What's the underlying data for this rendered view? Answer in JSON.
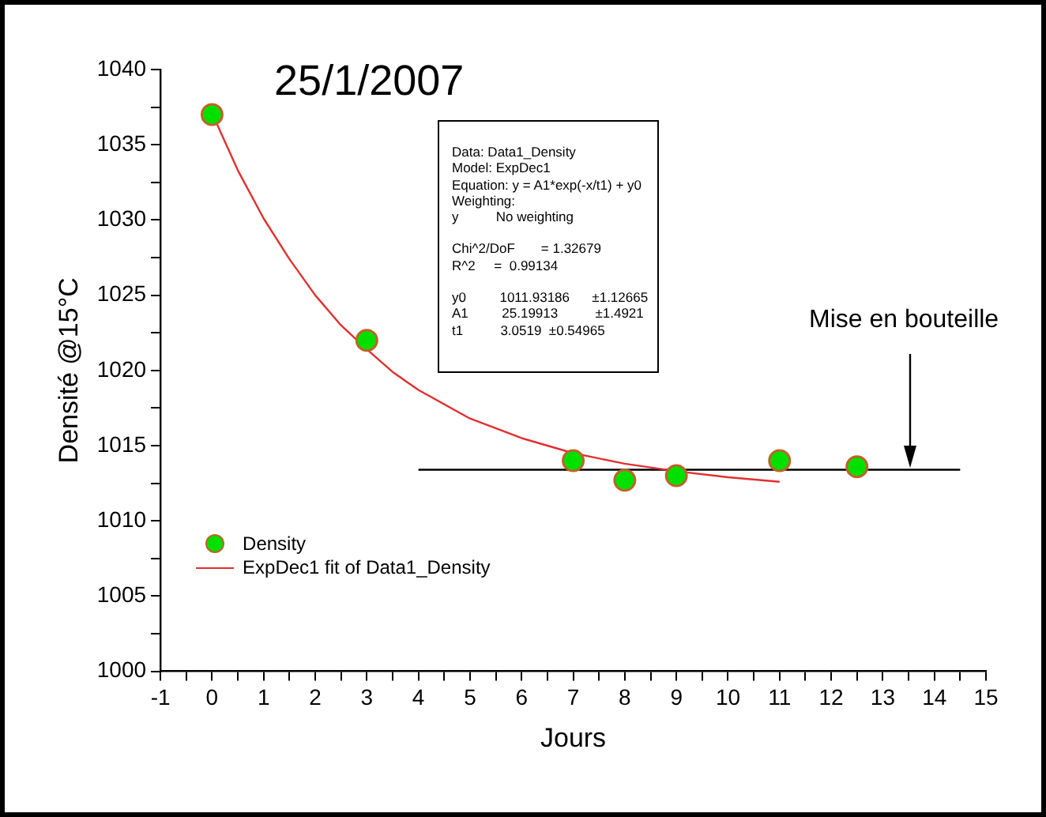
{
  "chart_data": {
    "type": "scatter",
    "title": "25/1/2007",
    "xlabel": "Jours",
    "ylabel": "Densité @15°C",
    "xlim": [
      -1,
      15
    ],
    "xticks": [
      -1,
      {
        "value": -0.5,
        "label": null
      },
      0,
      {
        "value": 0.5,
        "label": null
      },
      1,
      {
        "value": 1.5,
        "label": null
      },
      2,
      {
        "value": 2.5,
        "label": null
      },
      3,
      {
        "value": 3.5,
        "label": null
      },
      4,
      {
        "value": 4.5,
        "label": null
      },
      5,
      {
        "value": 5.5,
        "label": null
      },
      6,
      {
        "value": 6.5,
        "label": null
      },
      7,
      {
        "value": 7.5,
        "label": null
      },
      8,
      {
        "value": 8.5,
        "label": null
      },
      9,
      {
        "value": 9.5,
        "label": null
      },
      10,
      {
        "value": 10.5,
        "label": null
      },
      11,
      {
        "value": 11.5,
        "label": null
      },
      12,
      {
        "value": 12.5,
        "label": null
      },
      13,
      {
        "value": 13.5,
        "label": null
      },
      14,
      {
        "value": 14.5,
        "label": null
      },
      15
    ],
    "ylim": [
      1000,
      1040
    ],
    "yticks": [
      1000,
      {
        "value": 1002.5,
        "label": null
      },
      1005,
      {
        "value": 1007.5,
        "label": null
      },
      1010,
      {
        "value": 1012.5,
        "label": null
      },
      1015,
      {
        "value": 1017.5,
        "label": null
      },
      1020,
      {
        "value": 1022.5,
        "label": null
      },
      1025,
      {
        "value": 1027.5,
        "label": null
      },
      1030,
      {
        "value": 1032.5,
        "label": null
      },
      1035,
      {
        "value": 1037.5,
        "label": null
      },
      1040
    ],
    "legend": "bottom left",
    "line_style": "solid",
    "series": [
      {
        "name": "Density",
        "marker": "circle",
        "color": "#00e000",
        "x": [
          0,
          3,
          7,
          8,
          9,
          11,
          12.5
        ],
        "values": [
          1037,
          1022,
          1014,
          1012.7,
          1013,
          1014,
          1013.6
        ]
      },
      {
        "name": "ExpDec1 fit of Data1_Density",
        "type": "line",
        "color": "#e03030",
        "x": [
          0,
          0.5,
          1,
          1.5,
          2,
          2.5,
          3,
          3.5,
          4,
          5,
          6,
          7,
          8,
          9,
          10,
          11
        ],
        "values": [
          1037.1,
          1033.3,
          1030.1,
          1027.4,
          1025,
          1023,
          1021.4,
          1019.9,
          1018.7,
          1016.8,
          1015.5,
          1014.5,
          1013.8,
          1013.3,
          1012.9,
          1012.6
        ]
      },
      {
        "type": "line",
        "color": "#000000",
        "x": [
          4,
          14.5
        ],
        "values": [
          1013.4,
          1013.4
        ]
      }
    ],
    "annotations": [
      "Data: Data1_Density",
      "Model: ExpDec1",
      "Equation: y = A1*exp(-x/t1) + y0",
      "Weighting:",
      "y          No weighting",
      "Chi^2/DoF       = 1.32679",
      "R^2     =  0.99134",
      "y0         1011.93186      ±1.12665",
      "A1         25.19913          ±1.4921",
      "t1          3.0519  ±0.54965",
      "Mise en bouteille"
    ]
  }
}
